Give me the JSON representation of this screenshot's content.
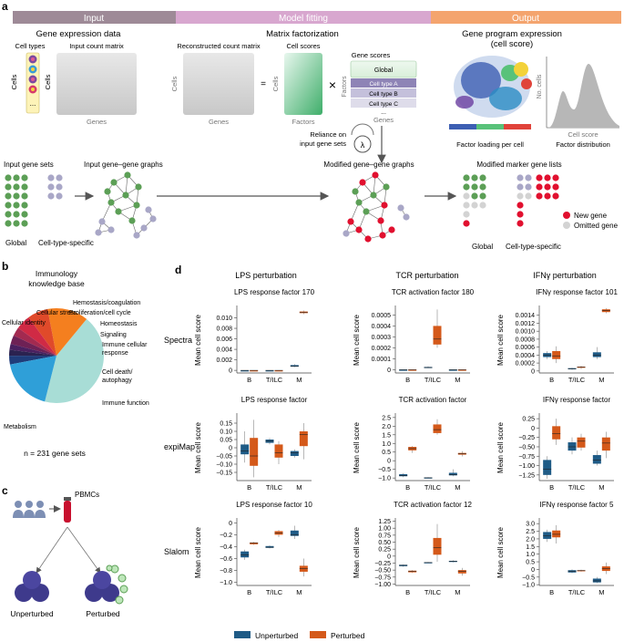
{
  "panel_labels": {
    "a": "a",
    "b": "b",
    "c": "c",
    "d": "d"
  },
  "colors": {
    "input_bar": "#9e8a97",
    "model_bar": "#d8a7cf",
    "output_bar": "#f4a46e",
    "green": "#5c9f56",
    "grey_purple": "#a9a7c7",
    "red": "#e1102f",
    "light_grey": "#d3d3d3",
    "unperturbed": "#1f5b86",
    "perturbed": "#d4591a"
  },
  "panel_a": {
    "section_input": "Input",
    "section_model": "Model fitting",
    "section_output": "Output",
    "gene_expression_data": "Gene expression data",
    "cell_types": "Cell types",
    "input_count_matrix": "Input count matrix",
    "cells": "Cells",
    "genes": "Genes",
    "matrix_factorization": "Matrix factorization",
    "reconstructed_count_matrix": "Reconstructed count matrix",
    "cell_scores": "Cell scores",
    "gene_scores": "Gene scores",
    "equals": "=",
    "times": "×",
    "factors": "Factors",
    "ellipsis": "...",
    "global": "Global",
    "cell_type_a": "Cell type A",
    "cell_type_b": "Cell type B",
    "cell_type_c": "Cell type C",
    "reliance_line1": "Reliance on",
    "reliance_line2": "input gene sets",
    "lambda": "λ",
    "gene_program_title": "Gene program expression",
    "gene_program_subtitle": "(cell score)",
    "no_cells": "No. cells",
    "cell_score": "Cell score",
    "factor_loading": "Factor loading per cell",
    "factor_distribution": "Factor distribution",
    "input_gene_sets": "Input gene sets",
    "input_gene_graphs": "Input gene–gene graphs",
    "modified_graphs": "Modified gene–gene graphs",
    "modified_lists": "Modified marker gene lists",
    "global_label": "Global",
    "cell_type_specific": "Cell-type-specific",
    "new_gene": "New gene",
    "omitted_gene": "Omitted gene"
  },
  "panel_b": {
    "title_line1": "Immunology",
    "title_line2": "knowledge base",
    "slices": [
      {
        "label": "Metabolism",
        "color": "#a8ddd6"
      },
      {
        "label": "Immune function",
        "color": "#f47f1f"
      },
      {
        "label": "Cell death/\nautophagy",
        "color": "#e04a2a"
      },
      {
        "label": "Immune cellular\nresponse",
        "color": "#d02a45"
      },
      {
        "label": "Signaling",
        "color": "#a32a50"
      },
      {
        "label": "Homeostasis",
        "color": "#6e2155"
      },
      {
        "label": "Proliferation/cell cycle",
        "color": "#4a2060"
      },
      {
        "label": "Hemostasis/coagulation",
        "color": "#2b2250"
      },
      {
        "label": "Cellular stress",
        "color": "#1f3c7a"
      },
      {
        "label": "Cellular identity",
        "color": "#2f9fd8"
      }
    ],
    "n_label": "n = 231 gene sets"
  },
  "panel_c": {
    "pbmcs": "PBMCs",
    "unperturbed": "Unperturbed",
    "perturbed": "Perturbed"
  },
  "panel_d": {
    "columns": [
      "LPS perturbation",
      "TCR perturbation",
      "IFNγ perturbation"
    ],
    "rows": [
      "Spectra",
      "expiMap",
      "Slalom"
    ],
    "ylabel": "Mean cell score",
    "categories": [
      "B",
      "T/ILC",
      "M"
    ],
    "legend": [
      "Unperturbed",
      "Perturbed"
    ]
  },
  "chart_data": [
    {
      "type": "box",
      "title": "LPS response factor 170",
      "ylabel": "Mean cell score",
      "categories": [
        "B",
        "T/ILC",
        "M"
      ],
      "ylim": [
        -0.0005,
        0.012
      ],
      "ticks": [
        0,
        0.002,
        0.004,
        0.006,
        0.008,
        0.01
      ],
      "tick_labels": [
        "0",
        "0.002",
        "0.004",
        "0.006",
        "0.008",
        "0.010"
      ],
      "series": [
        {
          "name": "Unperturbed",
          "boxes": [
            [
              0,
              0,
              0,
              0,
              0
            ],
            [
              0,
              0,
              0,
              0,
              0
            ],
            [
              0.0006,
              0.0007,
              0.0008,
              0.001,
              0.0012
            ]
          ]
        },
        {
          "name": "Perturbed",
          "boxes": [
            [
              0,
              0,
              0,
              0,
              0
            ],
            [
              0,
              0,
              0,
              0,
              0
            ],
            [
              0.0107,
              0.0109,
              0.011,
              0.0112,
              0.0114
            ]
          ]
        }
      ]
    },
    {
      "type": "box",
      "title": "TCR activation factor 180",
      "ylabel": "Mean cell score",
      "categories": [
        "B",
        "T/ILC",
        "M"
      ],
      "ylim": [
        -3e-05,
        0.00057
      ],
      "ticks": [
        0,
        0.0001,
        0.0002,
        0.0003,
        0.0004,
        0.0005
      ],
      "tick_labels": [
        "0",
        "0.0001",
        "0.0002",
        "0.0003",
        "0.0004",
        "0.0005"
      ],
      "series": [
        {
          "name": "Unperturbed",
          "boxes": [
            [
              0,
              0,
              0,
              0,
              0
            ],
            [
              1.5e-05,
              2e-05,
              2e-05,
              2.5e-05,
              3e-05
            ],
            [
              0,
              0,
              0,
              0,
              0
            ]
          ]
        },
        {
          "name": "Perturbed",
          "boxes": [
            [
              0,
              0,
              0,
              0,
              0
            ],
            [
              0.0002,
              0.00023,
              0.00028,
              0.0004,
              0.00055
            ],
            [
              0,
              0,
              0,
              0,
              0
            ]
          ]
        }
      ]
    },
    {
      "type": "box",
      "title": "IFNγ response factor 101",
      "ylabel": "Mean cell score",
      "categories": [
        "B",
        "T/ILC",
        "M"
      ],
      "ylim": [
        -5e-05,
        0.0016
      ],
      "ticks": [
        0,
        0.0002,
        0.0004,
        0.0006,
        0.0008,
        0.001,
        0.0012,
        0.0014
      ],
      "tick_labels": [
        "0",
        "0.0002",
        "0.0004",
        "0.0006",
        "0.0008",
        "0.0010",
        "0.0012",
        "0.0014"
      ],
      "series": [
        {
          "name": "Unperturbed",
          "boxes": [
            [
              0.0003,
              0.00035,
              0.0004,
              0.00045,
              0.0005
            ],
            [
              3e-05,
              5e-05,
              6e-05,
              7e-05,
              8e-05
            ],
            [
              0.0003,
              0.00035,
              0.0004,
              0.00047,
              0.0006
            ]
          ]
        },
        {
          "name": "Perturbed",
          "boxes": [
            [
              0.0002,
              0.0003,
              0.00038,
              0.0005,
              0.00062
            ],
            [
              5e-05,
              8e-05,
              0.0001,
              0.00011,
              0.00013
            ],
            [
              0.00145,
              0.00148,
              0.00152,
              0.00155,
              0.00158
            ]
          ]
        }
      ]
    },
    {
      "type": "box",
      "title": "LPS response factor",
      "ylabel": "Mean cell score",
      "categories": [
        "B",
        "T/ILC",
        "M"
      ],
      "ylim": [
        -0.2,
        0.2
      ],
      "ticks": [
        -0.15,
        -0.1,
        -0.05,
        0,
        0.05,
        0.1,
        0.15
      ],
      "tick_labels": [
        "−0.15",
        "−0.10",
        "−0.05",
        "0",
        "0.05",
        "0.10",
        "0.15"
      ],
      "series": [
        {
          "name": "Unperturbed",
          "boxes": [
            [
              -0.09,
              -0.04,
              -0.02,
              0.02,
              0.1
            ],
            [
              0.02,
              0.03,
              0.04,
              0.05,
              0.06
            ],
            [
              -0.06,
              -0.05,
              -0.03,
              -0.02,
              -0.01
            ]
          ]
        },
        {
          "name": "Perturbed",
          "boxes": [
            [
              -0.18,
              -0.11,
              -0.05,
              0.06,
              0.17
            ],
            [
              -0.1,
              -0.06,
              -0.03,
              0.02,
              0.04
            ],
            [
              -0.07,
              0.01,
              0.08,
              0.1,
              0.15
            ]
          ]
        }
      ]
    },
    {
      "type": "box",
      "title": "TCR activation factor",
      "ylabel": "Mean cell score",
      "categories": [
        "B",
        "T/ILC",
        "M"
      ],
      "ylim": [
        -1.15,
        2.65
      ],
      "ticks": [
        -1,
        -0.5,
        0,
        0.5,
        1,
        1.5,
        2,
        2.5
      ],
      "tick_labels": [
        "−1.0",
        "−0.5",
        "0",
        "0.5",
        "1.0",
        "1.5",
        "2.0",
        "2.5"
      ],
      "series": [
        {
          "name": "Unperturbed",
          "boxes": [
            [
              -0.95,
              -0.9,
              -0.85,
              -0.78,
              -0.72
            ],
            [
              -1.02,
              -1.0,
              -0.99,
              -0.97,
              -0.95
            ],
            [
              -0.9,
              -0.85,
              -0.8,
              -0.7,
              -0.5
            ]
          ]
        },
        {
          "name": "Perturbed",
          "boxes": [
            [
              0.45,
              0.6,
              0.7,
              0.8,
              0.85
            ],
            [
              1.5,
              1.6,
              1.8,
              2.1,
              2.4
            ],
            [
              0.25,
              0.35,
              0.4,
              0.45,
              0.55
            ]
          ]
        }
      ]
    },
    {
      "type": "box",
      "title": "IFNγ response factor",
      "ylabel": "Mean cell score",
      "categories": [
        "B",
        "T/ILC",
        "M"
      ],
      "ylim": [
        -1.4,
        0.35
      ],
      "ticks": [
        -1.25,
        -1,
        -0.75,
        -0.5,
        -0.25,
        0,
        0.25
      ],
      "tick_labels": [
        "−1.25",
        "−1.00",
        "−0.75",
        "−0.50",
        "−0.25",
        "0",
        "0.25"
      ],
      "series": [
        {
          "name": "Unperturbed",
          "boxes": [
            [
              -1.35,
              -1.25,
              -1.1,
              -0.85,
              -0.75
            ],
            [
              -0.7,
              -0.6,
              -0.5,
              -0.38,
              -0.25
            ],
            [
              -1.0,
              -0.95,
              -0.85,
              -0.72,
              -0.6
            ]
          ]
        },
        {
          "name": "Perturbed",
          "boxes": [
            [
              -0.45,
              -0.3,
              -0.15,
              0.05,
              0.25
            ],
            [
              -0.6,
              -0.52,
              -0.35,
              -0.25,
              -0.15
            ],
            [
              -0.8,
              -0.6,
              -0.4,
              -0.25,
              -0.1
            ]
          ]
        }
      ]
    },
    {
      "type": "box",
      "title": "LPS response factor 10",
      "ylabel": "Mean cell score",
      "categories": [
        "B",
        "T/ILC",
        "M"
      ],
      "ylim": [
        -1.05,
        0.05
      ],
      "ticks": [
        -1,
        -0.8,
        -0.6,
        -0.4,
        -0.2,
        0
      ],
      "tick_labels": [
        "−1.0",
        "−0.8",
        "−0.6",
        "−0.4",
        "−0.2",
        "0"
      ],
      "series": [
        {
          "name": "Unperturbed",
          "boxes": [
            [
              -0.62,
              -0.58,
              -0.54,
              -0.48,
              -0.45
            ],
            [
              -0.43,
              -0.42,
              -0.41,
              -0.39,
              -0.38
            ],
            [
              -0.27,
              -0.22,
              -0.2,
              -0.13,
              -0.05
            ]
          ]
        },
        {
          "name": "Perturbed",
          "boxes": [
            [
              -0.37,
              -0.36,
              -0.34,
              -0.33,
              -0.32
            ],
            [
              -0.24,
              -0.2,
              -0.17,
              -0.14,
              -0.12
            ],
            [
              -0.9,
              -0.82,
              -0.77,
              -0.72,
              -0.6
            ]
          ]
        }
      ]
    },
    {
      "type": "box",
      "title": "TCR activation factor 12",
      "ylabel": "Mean cell score",
      "categories": [
        "B",
        "T/ILC",
        "M"
      ],
      "ylim": [
        -1.05,
        1.3
      ],
      "ticks": [
        -1,
        -0.75,
        -0.5,
        -0.25,
        0,
        0.25,
        0.5,
        0.75,
        1,
        1.25
      ],
      "tick_labels": [
        "−1.00",
        "−0.75",
        "−0.50",
        "−0.25",
        "0",
        "0.25",
        "0.50",
        "0.75",
        "1.00",
        "1.25"
      ],
      "series": [
        {
          "name": "Unperturbed",
          "boxes": [
            [
              -0.38,
              -0.36,
              -0.33,
              -0.31,
              -0.3
            ],
            [
              -0.25,
              -0.24,
              -0.23,
              -0.22,
              -0.21
            ],
            [
              -0.22,
              -0.21,
              -0.18,
              -0.17,
              -0.15
            ]
          ]
        },
        {
          "name": "Perturbed",
          "boxes": [
            [
              -0.6,
              -0.58,
              -0.55,
              -0.52,
              -0.5
            ],
            [
              -0.2,
              0.05,
              0.3,
              0.65,
              1.15
            ],
            [
              -0.7,
              -0.62,
              -0.55,
              -0.5,
              -0.42
            ]
          ]
        }
      ]
    },
    {
      "type": "box",
      "title": "IFNγ response factor 5",
      "ylabel": "Mean cell score",
      "categories": [
        "B",
        "T/ILC",
        "M"
      ],
      "ylim": [
        -1.05,
        3.25
      ],
      "ticks": [
        -1,
        -0.5,
        0,
        0.5,
        1,
        1.5,
        2,
        2.5,
        3
      ],
      "tick_labels": [
        "−1.0",
        "−0.5",
        "0",
        "0.5",
        "1.0",
        "1.5",
        "2.0",
        "2.5",
        "3.0"
      ],
      "series": [
        {
          "name": "Unperturbed",
          "boxes": [
            [
              1.8,
              2.0,
              2.2,
              2.45,
              2.6
            ],
            [
              -0.25,
              -0.2,
              -0.12,
              -0.05,
              0
            ],
            [
              -0.9,
              -0.85,
              -0.75,
              -0.6,
              -0.5
            ]
          ]
        },
        {
          "name": "Perturbed",
          "boxes": [
            [
              1.7,
              2.1,
              2.3,
              2.55,
              2.9
            ],
            [
              -0.15,
              -0.12,
              -0.08,
              -0.05,
              -0.02
            ],
            [
              -0.3,
              -0.1,
              0.05,
              0.2,
              0.45
            ]
          ]
        }
      ]
    }
  ]
}
